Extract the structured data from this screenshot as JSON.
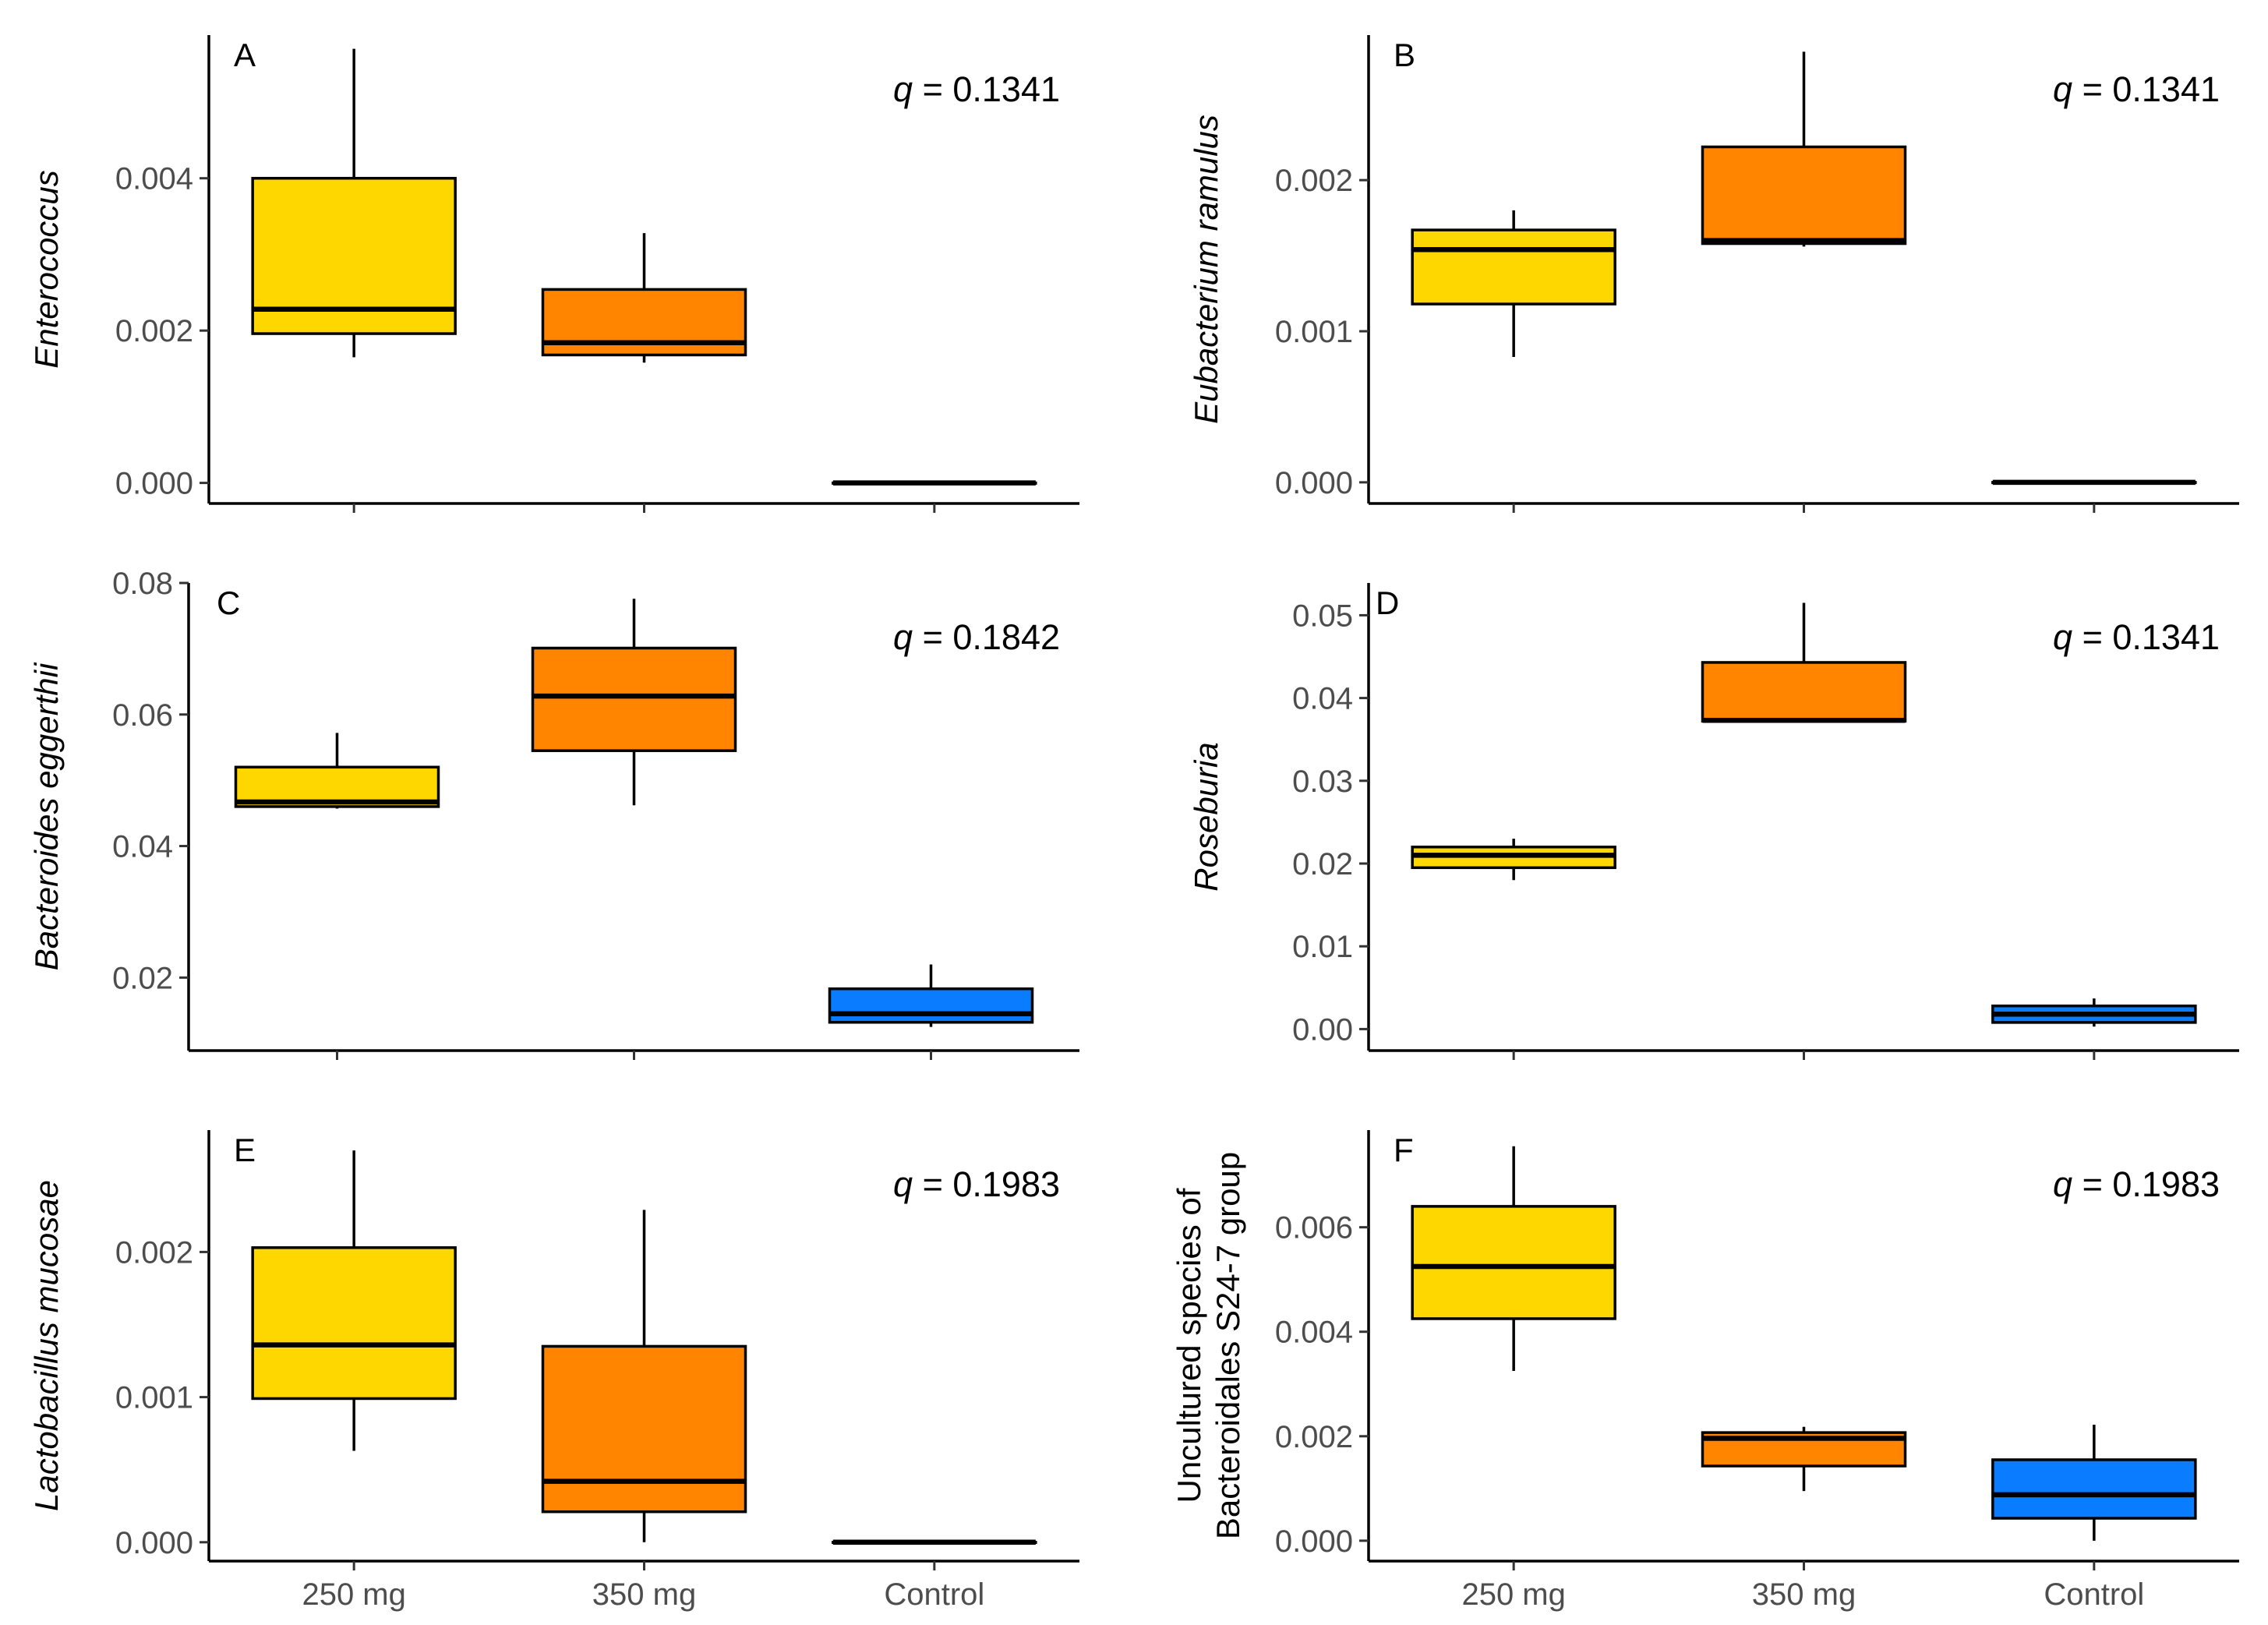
{
  "colors": {
    "250 mg": "#FFD700",
    "350 mg": "#FF8500",
    "Control": "#0A7CFF"
  },
  "chart_data": [
    {
      "type": "box",
      "panel": "A",
      "ylabel": "Enterococcus",
      "annotation": {
        "prefix": "q",
        "value": "0.1341"
      },
      "categories": [
        "250 mg",
        "350 mg",
        "Control"
      ],
      "ylim": [
        -0.00027,
        0.00588
      ],
      "yticks": [
        "0.000",
        "0.002",
        "0.004"
      ],
      "boxes": [
        {
          "min": 0.00165,
          "q1": 0.00196,
          "median": 0.00228,
          "q3": 0.004,
          "max": 0.0057
        },
        {
          "min": 0.00158,
          "q1": 0.00168,
          "median": 0.00184,
          "q3": 0.00254,
          "max": 0.00328
        },
        {
          "min": 0.0,
          "q1": 0.0,
          "median": 0.0,
          "q3": 0.0,
          "max": 0.0
        }
      ]
    },
    {
      "type": "box",
      "panel": "B",
      "ylabel": "Eubacterium ramulus",
      "annotation": {
        "prefix": "q",
        "value": "0.1341"
      },
      "categories": [
        "250 mg",
        "350 mg",
        "Control"
      ],
      "ylim": [
        -0.00014,
        0.00296
      ],
      "yticks": [
        "0.000",
        "0.001",
        "0.002"
      ],
      "boxes": [
        {
          "min": 0.00083,
          "q1": 0.00118,
          "median": 0.00154,
          "q3": 0.00167,
          "max": 0.0018
        },
        {
          "min": 0.00156,
          "q1": 0.00158,
          "median": 0.0016,
          "q3": 0.00222,
          "max": 0.00285
        },
        {
          "min": 0.0,
          "q1": 0.0,
          "median": 0.0,
          "q3": 0.0,
          "max": 0.0
        }
      ]
    },
    {
      "type": "box",
      "panel": "C",
      "ylabel": "Bacteroides eggerthii",
      "annotation": {
        "prefix": "q",
        "value": "0.1842"
      },
      "categories": [
        "250 mg",
        "350 mg",
        "Control"
      ],
      "ylim": [
        0.0089,
        0.08
      ],
      "yticks": [
        "0.02",
        "0.04",
        "0.06",
        "0.08"
      ],
      "boxes": [
        {
          "min": 0.0457,
          "q1": 0.046,
          "median": 0.0467,
          "q3": 0.052,
          "max": 0.0572
        },
        {
          "min": 0.0462,
          "q1": 0.0545,
          "median": 0.0628,
          "q3": 0.0701,
          "max": 0.0776
        },
        {
          "min": 0.0125,
          "q1": 0.0132,
          "median": 0.0145,
          "q3": 0.0183,
          "max": 0.022
        }
      ]
    },
    {
      "type": "box",
      "panel": "D",
      "ylabel": "Roseburia",
      "annotation": {
        "prefix": "q",
        "value": "0.1341"
      },
      "categories": [
        "250 mg",
        "350 mg",
        "Control"
      ],
      "ylim": [
        -0.0026,
        0.0539
      ],
      "yticks": [
        "0.00",
        "0.01",
        "0.02",
        "0.03",
        "0.04",
        "0.05"
      ],
      "boxes": [
        {
          "min": 0.018,
          "q1": 0.0195,
          "median": 0.021,
          "q3": 0.022,
          "max": 0.023
        },
        {
          "min": 0.0372,
          "q1": 0.0372,
          "median": 0.0373,
          "q3": 0.0443,
          "max": 0.0515
        },
        {
          "min": 0.0003,
          "q1": 0.0008,
          "median": 0.0018,
          "q3": 0.0028,
          "max": 0.0037
        }
      ]
    },
    {
      "type": "box",
      "panel": "E",
      "ylabel": "Lactobacillus mucosae",
      "annotation": {
        "prefix": "q",
        "value": "0.1983"
      },
      "categories": [
        "250 mg",
        "350 mg",
        "Control"
      ],
      "ylim": [
        -0.00013,
        0.00284
      ],
      "yticks": [
        "0.000",
        "0.001",
        "0.002"
      ],
      "boxes": [
        {
          "min": 0.00063,
          "q1": 0.00099,
          "median": 0.00136,
          "q3": 0.00203,
          "max": 0.0027
        },
        {
          "min": 0.0,
          "q1": 0.00021,
          "median": 0.00042,
          "q3": 0.00135,
          "max": 0.00229
        },
        {
          "min": 0.0,
          "q1": 0.0,
          "median": 0.0,
          "q3": 0.0,
          "max": 0.0
        }
      ]
    },
    {
      "type": "box",
      "panel": "F",
      "ylabel": [
        "Uncultured species of",
        "Bacteroidales S24-7 group"
      ],
      "annotation": {
        "prefix": "q",
        "value": "0.1983"
      },
      "categories": [
        "250 mg",
        "350 mg",
        "Control"
      ],
      "ylim": [
        -0.00039,
        0.00786
      ],
      "yticks": [
        "0.000",
        "0.002",
        "0.004",
        "0.006"
      ],
      "boxes": [
        {
          "min": 0.00325,
          "q1": 0.00425,
          "median": 0.00525,
          "q3": 0.0064,
          "max": 0.00755
        },
        {
          "min": 0.00095,
          "q1": 0.00143,
          "median": 0.00196,
          "q3": 0.00207,
          "max": 0.00218
        },
        {
          "min": 0.0,
          "q1": 0.00043,
          "median": 0.00088,
          "q3": 0.00155,
          "max": 0.00222
        }
      ]
    }
  ]
}
